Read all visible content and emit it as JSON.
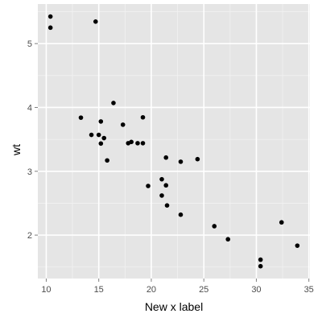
{
  "colors": {
    "panel_background": "#e5e5e5",
    "grid_major": "#ffffff",
    "grid_minor": "#f2f2f2",
    "point": "#000000",
    "tick": "#7f7f7f"
  },
  "chart_data": {
    "type": "scatter",
    "title": "",
    "xlabel": "New x label",
    "ylabel": "wt",
    "xlim": [
      9.2,
      35.1
    ],
    "ylim": [
      1.32,
      5.62
    ],
    "x_ticks": [
      10,
      15,
      20,
      25,
      30,
      35
    ],
    "x_tick_labels": [
      "10",
      "15",
      "20",
      "25",
      "30",
      "35"
    ],
    "y_ticks": [
      2,
      3,
      4,
      5
    ],
    "y_tick_labels": [
      "2",
      "3",
      "4",
      "5"
    ],
    "grid": true,
    "legend": "none",
    "x": [
      21.0,
      21.0,
      22.8,
      21.4,
      18.7,
      18.1,
      14.3,
      24.4,
      22.8,
      19.2,
      17.8,
      16.4,
      17.3,
      15.2,
      10.4,
      10.4,
      14.7,
      32.4,
      30.4,
      33.9,
      21.5,
      15.5,
      15.2,
      13.3,
      19.2,
      27.3,
      26.0,
      30.4,
      15.8,
      19.7,
      15.0,
      21.4
    ],
    "y": [
      2.62,
      2.875,
      2.32,
      3.215,
      3.44,
      3.46,
      3.57,
      3.19,
      3.15,
      3.44,
      3.44,
      4.07,
      3.73,
      3.78,
      5.25,
      5.424,
      5.345,
      2.2,
      1.615,
      1.835,
      2.465,
      3.52,
      3.435,
      3.84,
      3.845,
      1.935,
      2.14,
      1.513,
      3.17,
      2.77,
      3.57,
      2.78
    ]
  }
}
